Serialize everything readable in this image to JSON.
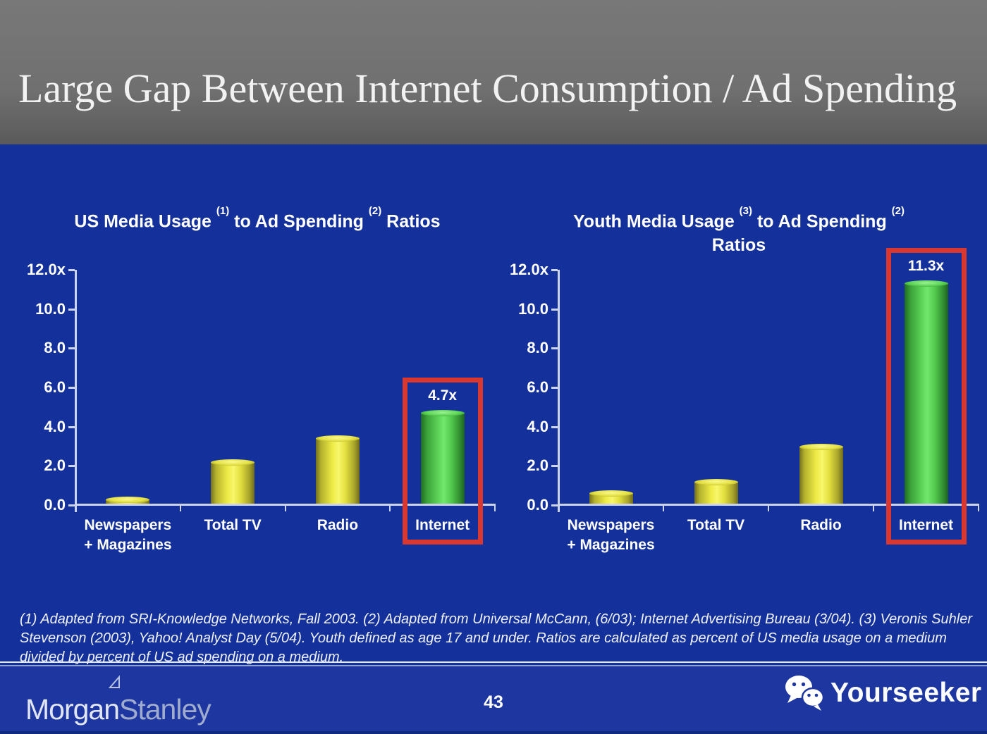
{
  "slide": {
    "title": "Large Gap Between Internet Consumption / Ad Spending",
    "page_number": "43",
    "footnote": "(1) Adapted from SRI-Knowledge Networks, Fall 2003.  (2) Adapted from Universal McCann, (6/03); Internet Advertising Bureau (3/04). (3) Veronis Suhler Stevenson (2003), Yahoo! Analyst Day (5/04).  Youth defined as age 17 and under.  Ratios are calculated as percent of US media usage on a medium divided by percent of US ad spending on a medium.",
    "brand": {
      "part1": "Morgan",
      "part2": "Stanley",
      "flag_icon": "morgan-stanley-flag-icon"
    },
    "watermark": {
      "label": "Yourseeker",
      "icon": "wechat-icon"
    }
  },
  "colors": {
    "background_blue": "#14309a",
    "footer_blue": "#1d36a0",
    "header_gray": "#6f6f6f",
    "bar_yellow": "#f1ee4c",
    "bar_green": "#58cf52",
    "highlight_red": "#d93831",
    "axis_white": "#ccd4ec"
  },
  "chart_data": [
    {
      "type": "bar",
      "title": "US Media Usage (1) to Ad Spending (2) Ratios",
      "title_lines": [
        [
          {
            "text": "US Media Usage "
          },
          {
            "text": "(1)",
            "sup": true
          },
          {
            "text": " to Ad Spending "
          },
          {
            "text": "(2)",
            "sup": true
          },
          {
            "text": " Ratios"
          }
        ]
      ],
      "categories": [
        "Newspapers + Magazines",
        "Total TV",
        "Radio",
        "Internet"
      ],
      "values": [
        0.3,
        2.2,
        3.4,
        4.7
      ],
      "bar_colors": [
        "yellow",
        "yellow",
        "yellow",
        "green"
      ],
      "highlight_index": 3,
      "highlight_label": "4.7x",
      "ylim": [
        0,
        12
      ],
      "yticks": [
        "12.0x",
        "10.0",
        "8.0",
        "6.0",
        "4.0",
        "2.0",
        "0.0"
      ],
      "xlabel": "",
      "ylabel": "",
      "grid": false,
      "legend": "none"
    },
    {
      "type": "bar",
      "title": "Youth Media Usage (3) to Ad Spending (2) Ratios",
      "title_lines": [
        [
          {
            "text": "Youth Media Usage "
          },
          {
            "text": "(3)",
            "sup": true
          },
          {
            "text": " to Ad Spending "
          },
          {
            "text": "(2)",
            "sup": true
          }
        ],
        [
          {
            "text": "Ratios"
          }
        ]
      ],
      "categories": [
        "Newspapers + Magazines",
        "Total TV",
        "Radio",
        "Internet"
      ],
      "values": [
        0.6,
        1.2,
        3.0,
        11.3
      ],
      "bar_colors": [
        "yellow",
        "yellow",
        "yellow",
        "green"
      ],
      "highlight_index": 3,
      "highlight_label": "11.3x",
      "ylim": [
        0,
        12
      ],
      "yticks": [
        "12.0x",
        "10.0",
        "8.0",
        "6.0",
        "4.0",
        "2.0",
        "0.0"
      ],
      "xlabel": "",
      "ylabel": "",
      "grid": false,
      "legend": "none"
    }
  ]
}
